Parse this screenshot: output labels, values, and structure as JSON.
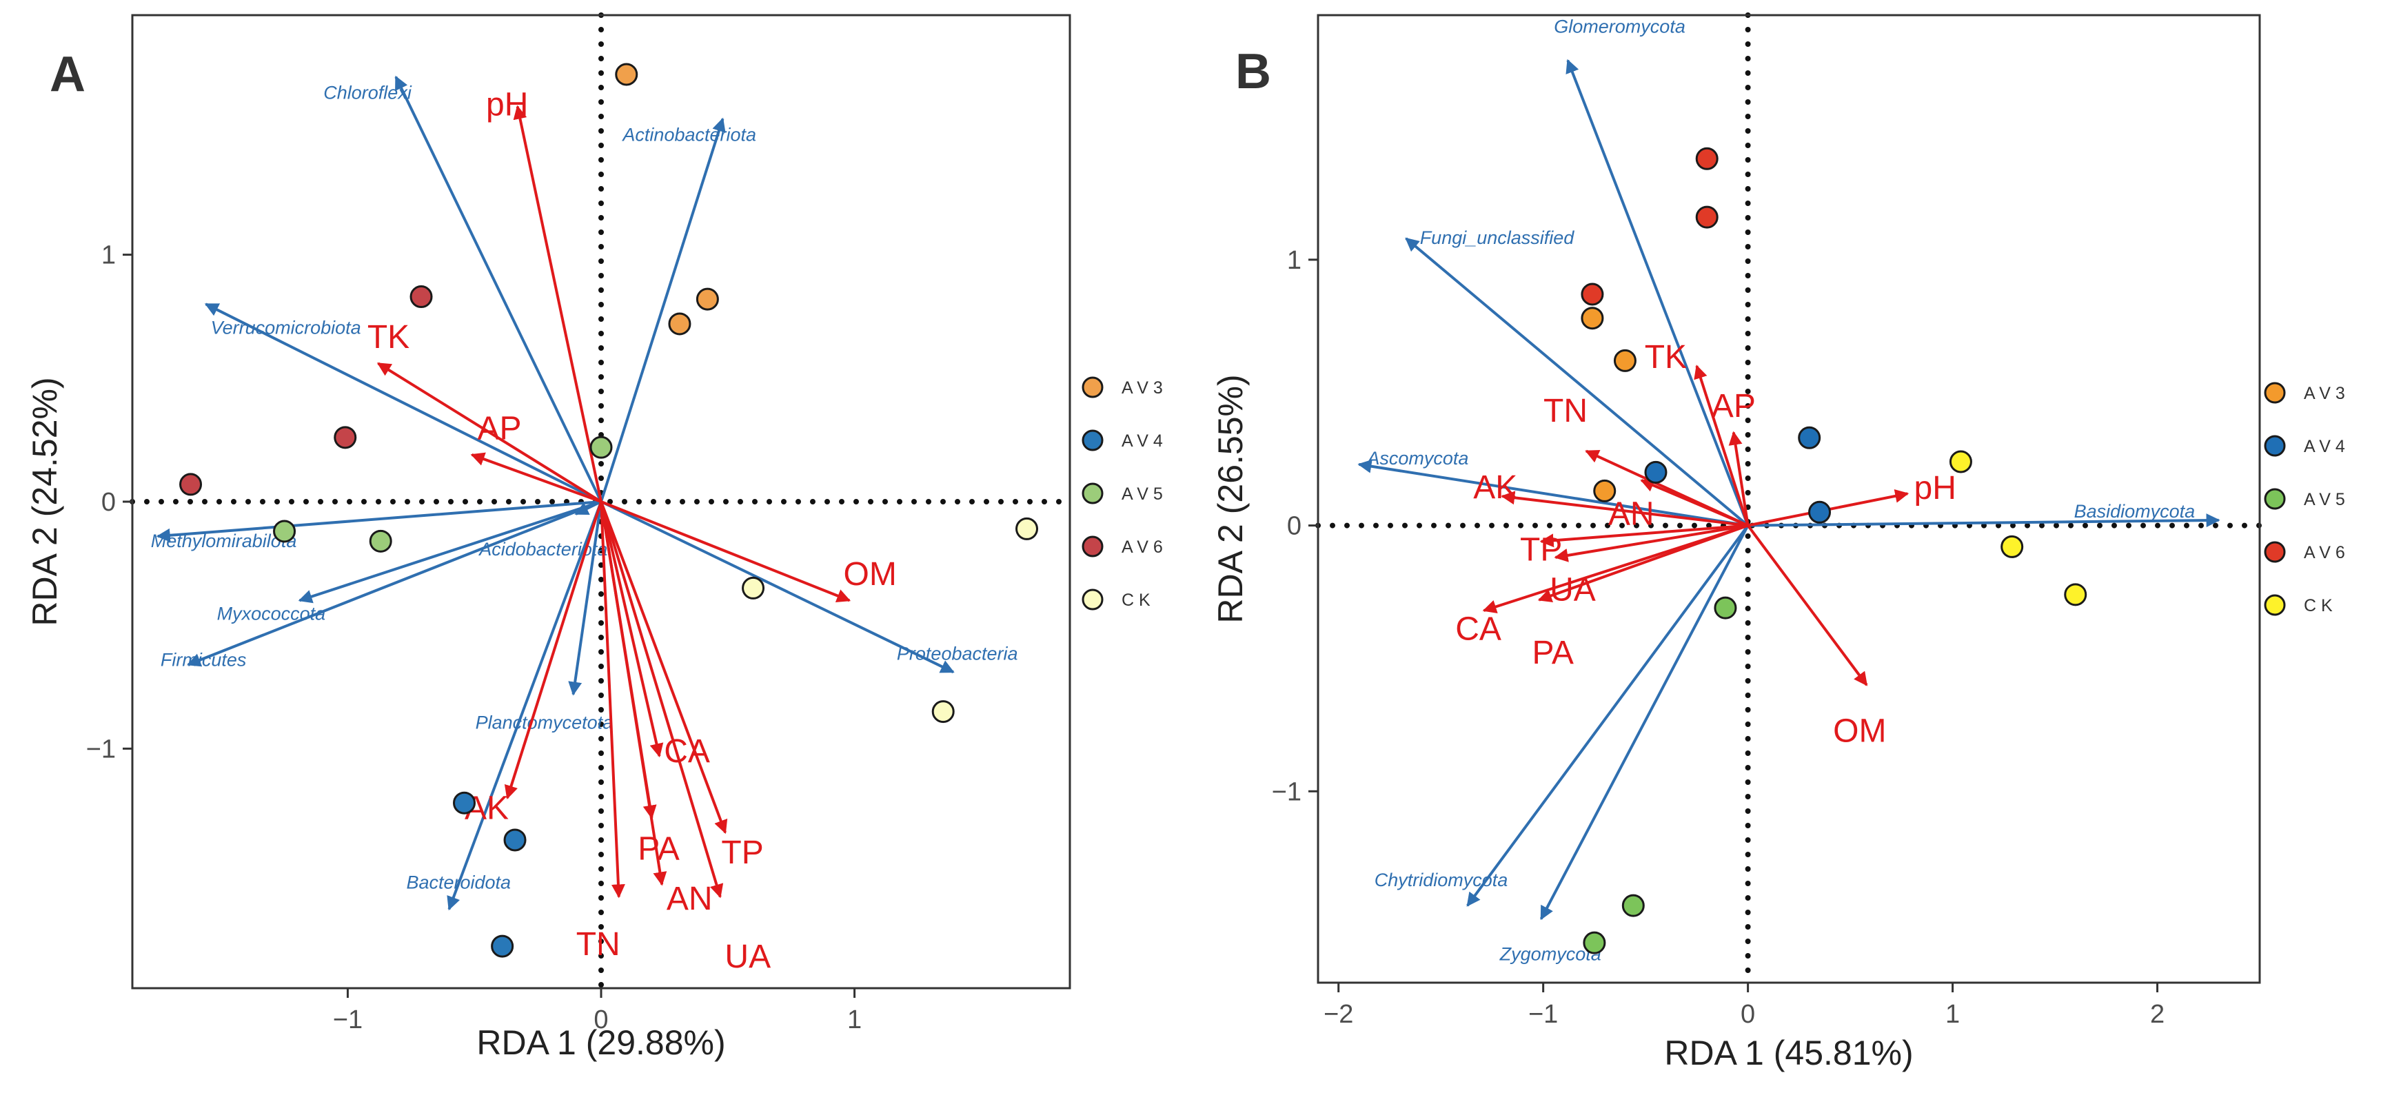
{
  "colors": {
    "species_arrow": "#2f6fb0",
    "env_arrow": "#e0191b",
    "axis_text": "#333333",
    "frame": "#333333",
    "groups": {
      "A": {
        "AV3": "#f0a04b",
        "AV4": "#2878b8",
        "AV5": "#9ccc7a",
        "AV6": "#c44449",
        "CK": "#fbfbc2"
      },
      "B": {
        "AV3": "#f39a2c",
        "AV4": "#1f6fb5",
        "AV5": "#7cc45a",
        "AV6": "#e03a27",
        "CK": "#fef22a"
      }
    }
  },
  "chart_data": [
    {
      "panel": "A",
      "type": "scatter",
      "title": "",
      "xlabel": "RDA 1 (29.88%)",
      "ylabel": "RDA 2 (24.52%)",
      "xlim": [
        -1.85,
        1.85
      ],
      "ylim": [
        -1.97,
        1.97
      ],
      "xticks": [
        -1,
        0,
        1
      ],
      "xtick_labels": [
        "−1",
        "0",
        "1"
      ],
      "yticks": [
        -1,
        0,
        1
      ],
      "ytick_labels": [
        "−1",
        "0",
        "1"
      ],
      "grid": false,
      "legend_position": "right",
      "legend": [
        {
          "key": "AV3",
          "label": "A V 3"
        },
        {
          "key": "AV4",
          "label": "A V 4"
        },
        {
          "key": "AV5",
          "label": "A V 5"
        },
        {
          "key": "AV6",
          "label": "A V 6"
        },
        {
          "key": "CK",
          "label": "C K"
        }
      ],
      "points": [
        {
          "group": "AV3",
          "x": 0.1,
          "y": 1.73
        },
        {
          "group": "AV3",
          "x": 0.42,
          "y": 0.82
        },
        {
          "group": "AV3",
          "x": 0.31,
          "y": 0.72
        },
        {
          "group": "AV4",
          "x": -0.54,
          "y": -1.22
        },
        {
          "group": "AV4",
          "x": -0.34,
          "y": -1.37
        },
        {
          "group": "AV4",
          "x": -0.39,
          "y": -1.8
        },
        {
          "group": "AV5",
          "x": 0.0,
          "y": 0.22
        },
        {
          "group": "AV5",
          "x": -1.25,
          "y": -0.12
        },
        {
          "group": "AV5",
          "x": -0.87,
          "y": -0.16
        },
        {
          "group": "AV6",
          "x": -0.71,
          "y": 0.83
        },
        {
          "group": "AV6",
          "x": -1.01,
          "y": 0.26
        },
        {
          "group": "AV6",
          "x": -1.62,
          "y": 0.07
        },
        {
          "group": "CK",
          "x": 0.6,
          "y": -0.35
        },
        {
          "group": "CK",
          "x": 1.68,
          "y": -0.11
        },
        {
          "group": "CK",
          "x": 1.35,
          "y": -0.85
        }
      ],
      "species_vectors": [
        {
          "label": "Chloroflexi",
          "x": -0.81,
          "y": 1.72
        },
        {
          "label": "Actinobacteriota",
          "x": 0.48,
          "y": 1.55
        },
        {
          "label": "Verrucomicrobiota",
          "x": -1.56,
          "y": 0.8
        },
        {
          "label": "Methylomirabilota",
          "x": -1.75,
          "y": -0.14
        },
        {
          "label": "Acidobacteriota",
          "x": -0.1,
          "y": -0.05
        },
        {
          "label": "Myxococcota",
          "x": -1.19,
          "y": -0.4
        },
        {
          "label": "Firmicutes",
          "x": -1.63,
          "y": -0.66
        },
        {
          "label": "Planctomycetota",
          "x": -0.11,
          "y": -0.78
        },
        {
          "label": "Bacteroidota",
          "x": -0.6,
          "y": -1.65
        },
        {
          "label": "Proteobacteria",
          "x": 1.39,
          "y": -0.69
        }
      ],
      "env_vectors": [
        {
          "label": "pH",
          "x": -0.33,
          "y": 1.6
        },
        {
          "label": "TK",
          "x": -0.88,
          "y": 0.56
        },
        {
          "label": "AP",
          "x": -0.51,
          "y": 0.19
        },
        {
          "label": "OM",
          "x": 0.98,
          "y": -0.4
        },
        {
          "label": "CA",
          "x": 0.23,
          "y": -1.03
        },
        {
          "label": "AK",
          "x": -0.37,
          "y": -1.2
        },
        {
          "label": "TP",
          "x": 0.49,
          "y": -1.34
        },
        {
          "label": "PA",
          "x": 0.2,
          "y": -1.28
        },
        {
          "label": "AN",
          "x": 0.24,
          "y": -1.55
        },
        {
          "label": "UA",
          "x": 0.47,
          "y": -1.6
        },
        {
          "label": "TN",
          "x": 0.07,
          "y": -1.6
        }
      ]
    },
    {
      "panel": "B",
      "type": "scatter",
      "title": "",
      "xlabel": "RDA 1 (45.81%)",
      "ylabel": "RDA 2 (26.55%)",
      "xlim": [
        -2.1,
        2.5
      ],
      "ylim": [
        -1.72,
        1.92
      ],
      "xticks": [
        -2,
        -1,
        0,
        1,
        2
      ],
      "xtick_labels": [
        "−2",
        "−1",
        "0",
        "1",
        "2"
      ],
      "yticks": [
        -1,
        0,
        1
      ],
      "ytick_labels": [
        "−1",
        "0",
        "1"
      ],
      "grid": false,
      "legend_position": "right",
      "legend": [
        {
          "key": "AV3",
          "label": "A V 3"
        },
        {
          "key": "AV4",
          "label": "A V 4"
        },
        {
          "key": "AV5",
          "label": "A V 5"
        },
        {
          "key": "AV6",
          "label": "A V 6"
        },
        {
          "key": "CK",
          "label": "C K"
        }
      ],
      "points": [
        {
          "group": "AV3",
          "x": -0.76,
          "y": 0.78
        },
        {
          "group": "AV3",
          "x": -0.6,
          "y": 0.62
        },
        {
          "group": "AV3",
          "x": -0.7,
          "y": 0.13
        },
        {
          "group": "AV4",
          "x": 0.3,
          "y": 0.33
        },
        {
          "group": "AV4",
          "x": 0.35,
          "y": 0.05
        },
        {
          "group": "AV4",
          "x": -0.45,
          "y": 0.2
        },
        {
          "group": "AV5",
          "x": -0.11,
          "y": -0.31
        },
        {
          "group": "AV5",
          "x": -0.56,
          "y": -1.43
        },
        {
          "group": "AV5",
          "x": -0.75,
          "y": -1.57
        },
        {
          "group": "AV6",
          "x": -0.2,
          "y": 1.38
        },
        {
          "group": "AV6",
          "x": -0.2,
          "y": 1.16
        },
        {
          "group": "AV6",
          "x": -0.76,
          "y": 0.87
        },
        {
          "group": "CK",
          "x": 1.04,
          "y": 0.24
        },
        {
          "group": "CK",
          "x": 1.29,
          "y": -0.08
        },
        {
          "group": "CK",
          "x": 1.6,
          "y": -0.26
        }
      ],
      "species_vectors": [
        {
          "label": "Glomeromycota",
          "x": -0.88,
          "y": 1.75
        },
        {
          "label": "Fungi_unclassified",
          "x": -1.67,
          "y": 1.08
        },
        {
          "label": "Ascomycota",
          "x": -1.9,
          "y": 0.23
        },
        {
          "label": "Basidiomycota",
          "x": 2.3,
          "y": 0.02
        },
        {
          "label": "Chytridiomycota",
          "x": -1.37,
          "y": -1.43
        },
        {
          "label": "Zygomycota",
          "x": -1.01,
          "y": -1.48
        }
      ],
      "env_vectors": [
        {
          "label": "TK",
          "x": -0.25,
          "y": 0.6
        },
        {
          "label": "AP",
          "x": -0.07,
          "y": 0.35
        },
        {
          "label": "TN",
          "x": -0.79,
          "y": 0.28
        },
        {
          "label": "AK",
          "x": -1.2,
          "y": 0.11
        },
        {
          "label": "AN",
          "x": -0.52,
          "y": 0.17
        },
        {
          "label": "TP",
          "x": -1.01,
          "y": -0.06
        },
        {
          "label": "UA",
          "x": -0.94,
          "y": -0.12
        },
        {
          "label": "CA",
          "x": -1.29,
          "y": -0.32
        },
        {
          "label": "PA",
          "x": -1.02,
          "y": -0.28
        },
        {
          "label": "OM",
          "x": 0.58,
          "y": -0.6
        },
        {
          "label": "pH",
          "x": 0.78,
          "y": 0.12
        }
      ]
    }
  ]
}
